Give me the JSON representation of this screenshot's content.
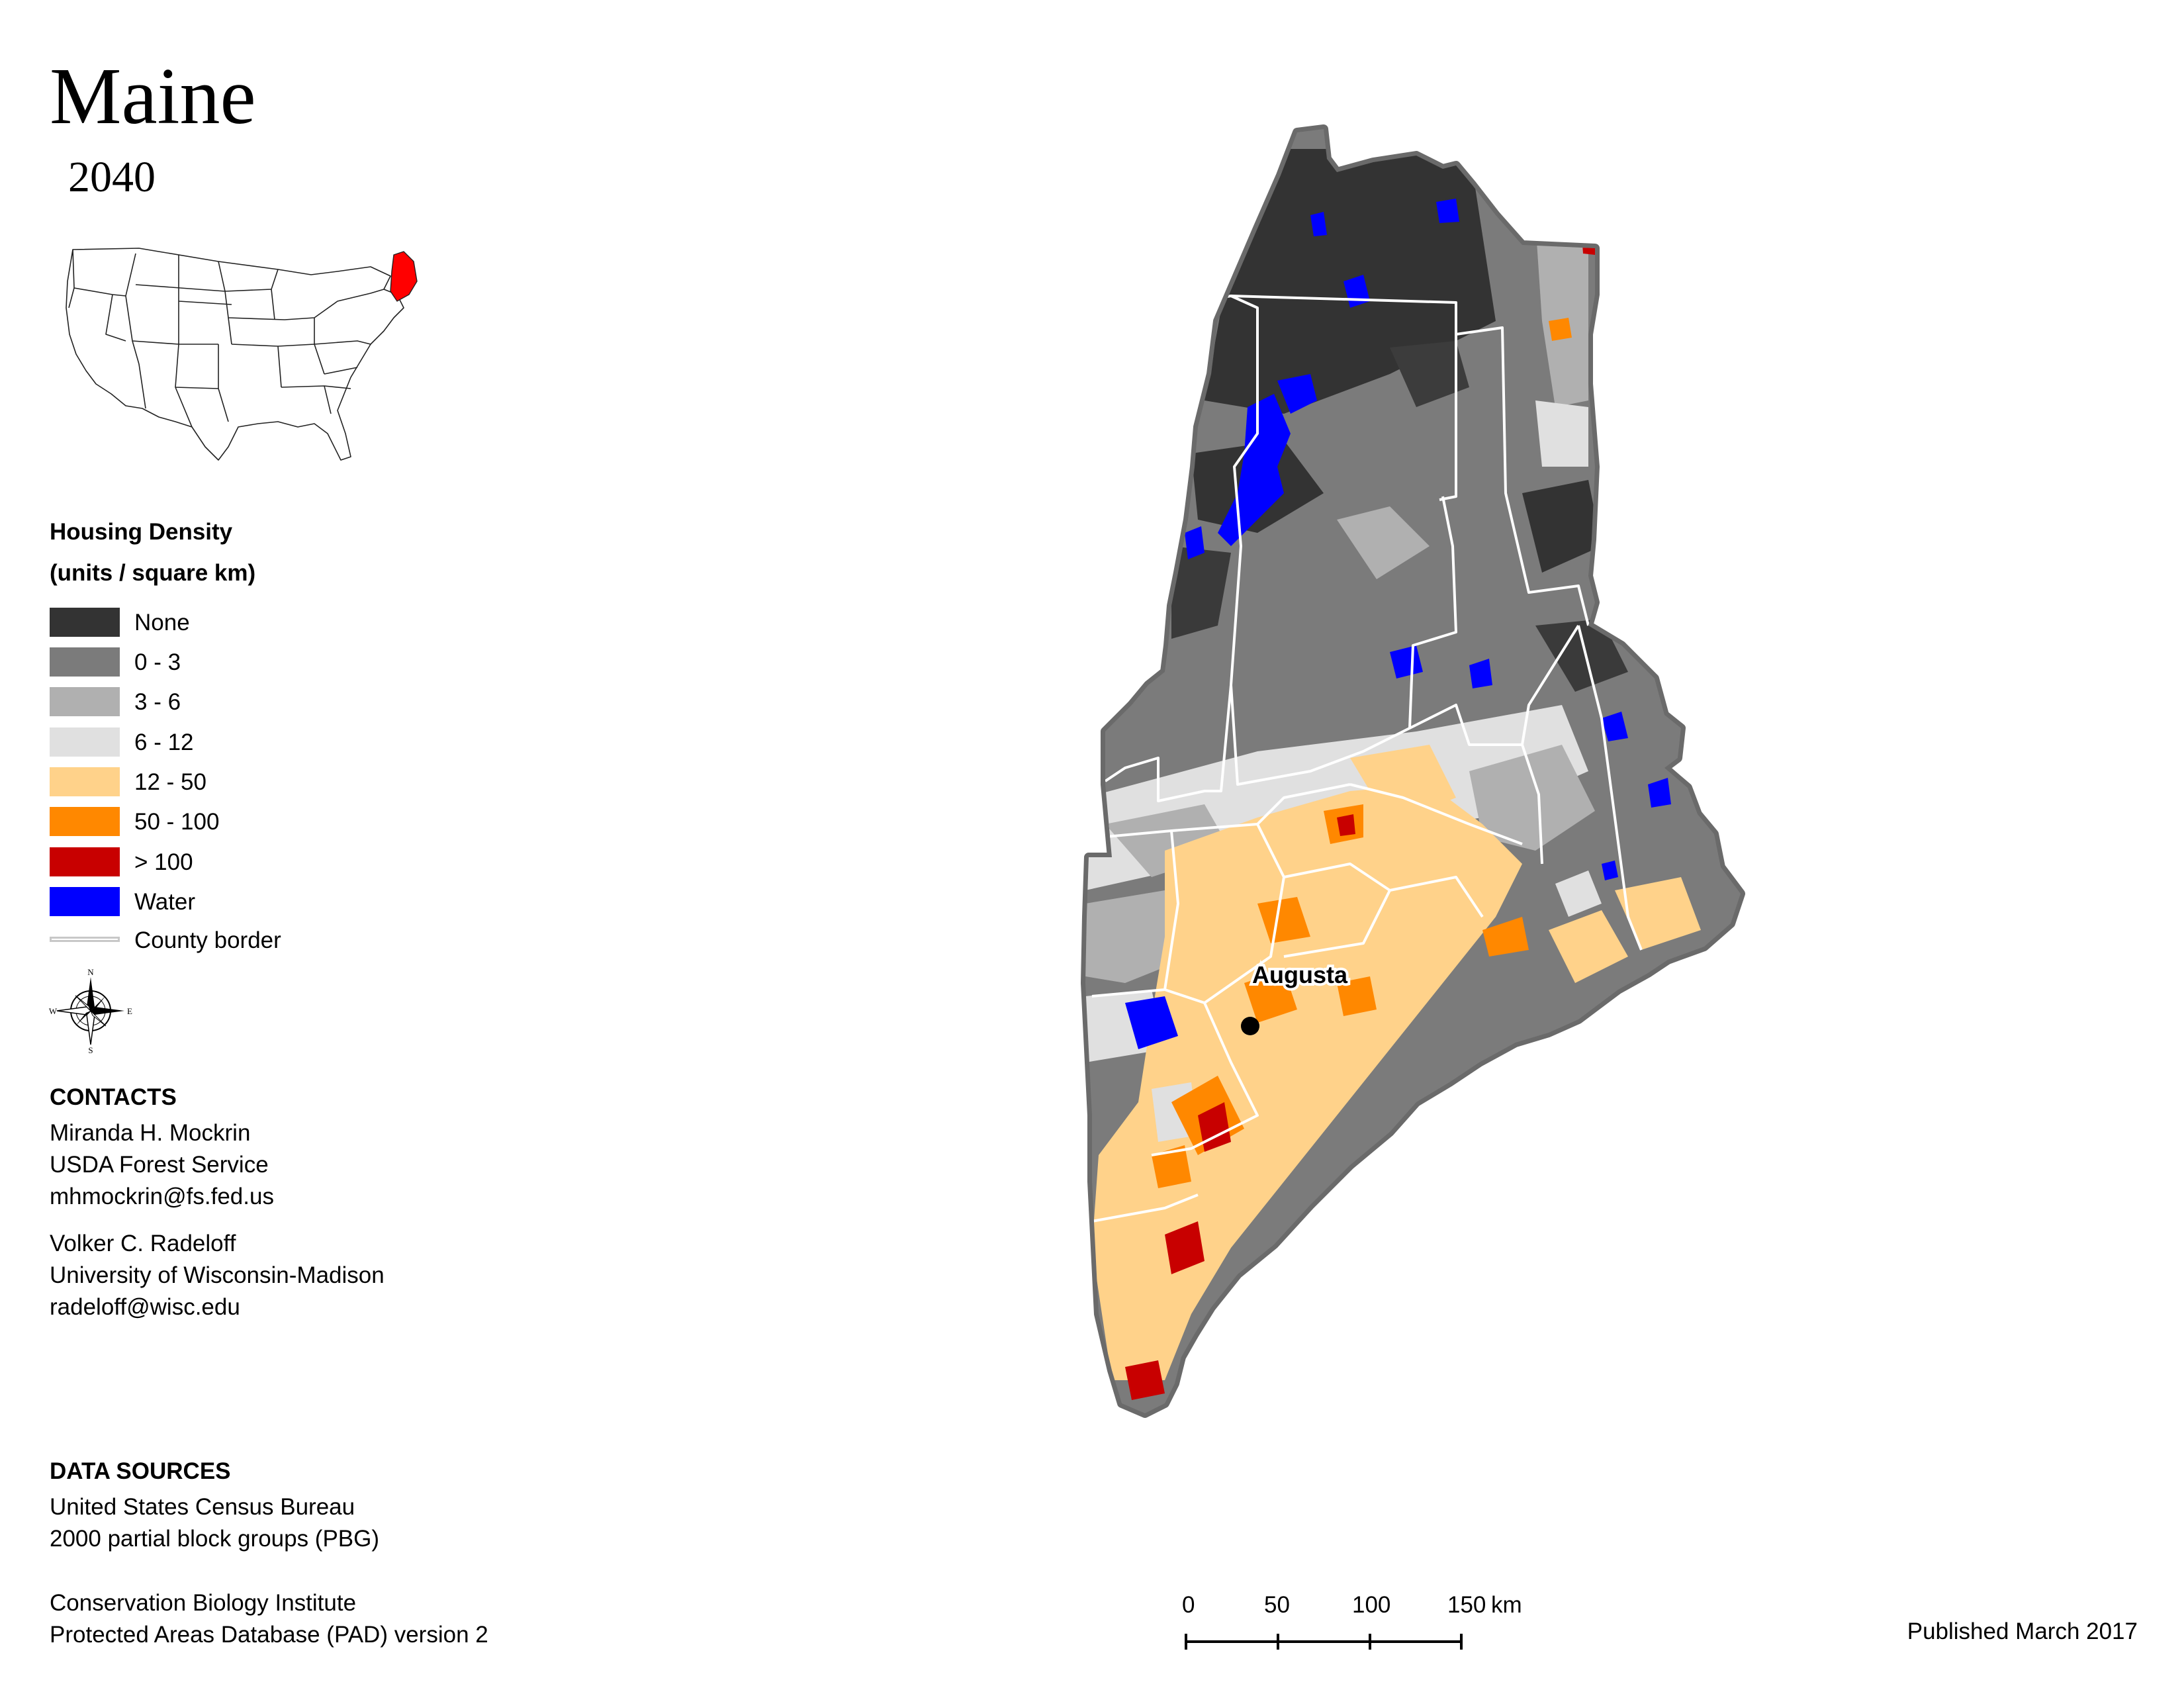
{
  "header": {
    "title": "Maine",
    "year": "2040"
  },
  "legend": {
    "title": "Housing Density",
    "subtitle": "(units / square km)",
    "items": [
      {
        "label": "None",
        "color": "#333333"
      },
      {
        "label": "0 - 3",
        "color": "#7b7b7b"
      },
      {
        "label": "3 - 6",
        "color": "#b0b0b0"
      },
      {
        "label": "6 - 12",
        "color": "#e0e0e0"
      },
      {
        "label": "12 - 50",
        "color": "#ffd28a"
      },
      {
        "label": "50 - 100",
        "color": "#ff8800"
      },
      {
        "label": "> 100",
        "color": "#c80000"
      },
      {
        "label": "Water",
        "color": "#0000ff"
      },
      {
        "label": "County border",
        "color": "#c8c8c8"
      }
    ]
  },
  "compass": {
    "n": "N",
    "s": "S",
    "e": "E",
    "w": "W"
  },
  "map": {
    "city": "Augusta",
    "highlight_color": "#ff0000"
  },
  "contacts": {
    "heading": "CONTACTS",
    "people": [
      {
        "name": "Miranda H. Mockrin",
        "org": "USDA Forest Service",
        "email": "mhmockrin@fs.fed.us"
      },
      {
        "name": "Volker C. Radeloff",
        "org": "University of Wisconsin-Madison",
        "email": "radeloff@wisc.edu"
      }
    ]
  },
  "sources": {
    "heading": "DATA SOURCES",
    "lines": [
      "United States Census Bureau",
      "2000 partial block groups (PBG)",
      "Conservation Biology Institute",
      "Protected Areas Database (PAD) version 2"
    ]
  },
  "scale": {
    "ticks": [
      "0",
      "50",
      "100",
      "150"
    ],
    "unit": "km"
  },
  "footer": {
    "published": "Published March 2017"
  }
}
